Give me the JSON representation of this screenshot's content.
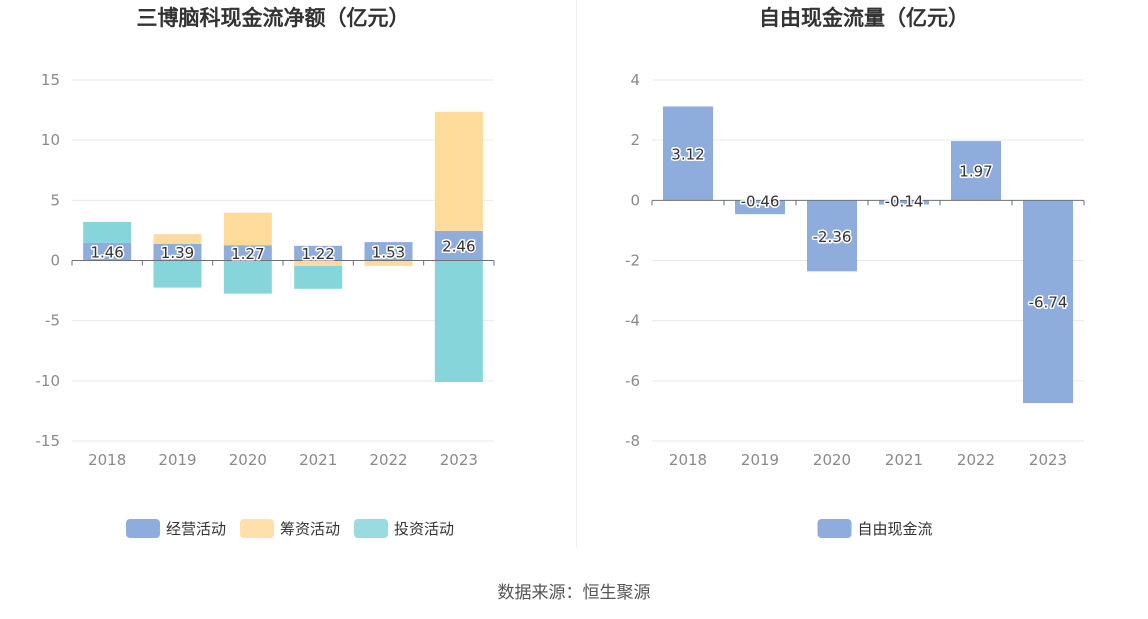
{
  "source_text": "数据来源：恒生聚源",
  "chart_data": [
    {
      "type": "bar",
      "stacked": true,
      "title": "三博脑科现金流净额（亿元）",
      "categories": [
        "2018",
        "2019",
        "2020",
        "2021",
        "2022",
        "2023"
      ],
      "ylim": [
        -15,
        15
      ],
      "yticks": [
        15,
        10,
        5,
        0,
        -5,
        -10,
        -15
      ],
      "ytick_labels": [
        "15",
        "10",
        "5",
        "0",
        "-5",
        "-10",
        "-15"
      ],
      "grid": true,
      "legend_position": "bottom",
      "series": [
        {
          "name": "经营活动",
          "color": "#8eacdc",
          "values": [
            1.46,
            1.39,
            1.27,
            1.22,
            1.53,
            2.46
          ],
          "labels": [
            "1.46",
            "1.39",
            "1.27",
            "1.22",
            "1.53",
            "2.46"
          ]
        },
        {
          "name": "筹资活动",
          "color": "#ffdb9b",
          "values": [
            0,
            0.8,
            2.7,
            -0.45,
            -0.45,
            9.9
          ]
        },
        {
          "name": "投资活动",
          "color": "#86d5db",
          "values": [
            1.75,
            -2.25,
            -2.75,
            -1.9,
            0,
            -10.1
          ]
        }
      ]
    },
    {
      "type": "bar",
      "title": "自由现金流量（亿元）",
      "categories": [
        "2018",
        "2019",
        "2020",
        "2021",
        "2022",
        "2023"
      ],
      "ylim": [
        -8,
        4
      ],
      "yticks": [
        4,
        2,
        0,
        -2,
        -4,
        -6,
        -8
      ],
      "ytick_labels": [
        "4",
        "2",
        "0",
        "-2",
        "-4",
        "-6",
        "-8"
      ],
      "grid": true,
      "legend_position": "bottom",
      "series": [
        {
          "name": "自由现金流",
          "color": "#8eacdc",
          "values": [
            3.12,
            -0.46,
            -2.36,
            -0.14,
            1.97,
            -6.74
          ],
          "labels": [
            "3.12",
            "-0.46",
            "-2.36",
            "-0.14",
            "1.97",
            "-6.74"
          ]
        }
      ]
    }
  ]
}
